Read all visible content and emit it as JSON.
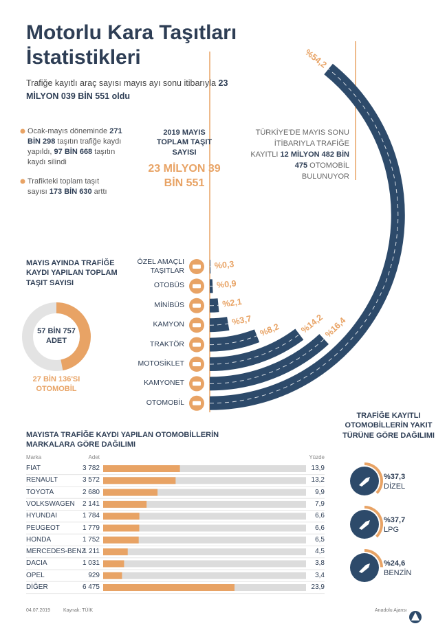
{
  "header": {
    "title": "Motorlu Kara Taşıtları İstatistikleri",
    "subtitle": [
      "Trafiğe kayıtlı araç sayısı mayıs ayı sonu itibarıyla ",
      "23 MİLYON 039 BİN 551 oldu"
    ]
  },
  "notes": [
    [
      "Ocak-mayıs döneminde ",
      "271 BİN 298",
      " taşıtın trafiğe kaydı yapıldı, ",
      "97 BİN 668",
      " taşıtın kaydı silindi"
    ],
    [
      "Trafikteki toplam taşıt sayısı ",
      "173 BİN 630",
      " arttı"
    ]
  ],
  "total_box": {
    "label": "2019 MAYIS TOPLAM TAŞIT SAYISI",
    "value": "23 MİLYON 39 BİN 551"
  },
  "otomobil_box": [
    "TÜRKİYE'DE MAYIS SONU İTİBARIYLA TRAFİĞE KAYITLI ",
    "12 MİLYON 482 BİN 475",
    " OTOMOBİL BULUNUYOR"
  ],
  "chart_data": [
    {
      "type": "radial_bar",
      "categories": [
        "ÖZEL AMAÇLI TAŞITLAR",
        "OTOBÜS",
        "MİNİBÜS",
        "KAMYON",
        "TRAKTÖR",
        "MOTOSİKLET",
        "KAMYONET",
        "OTOMOBİL"
      ],
      "values": [
        0.3,
        0.9,
        2.1,
        3.7,
        8.2,
        14.2,
        16.4,
        54.2
      ],
      "value_labels": [
        "%0,3",
        "%0,9",
        "%2,1",
        "%3,7",
        "%8,2",
        "%14,2",
        "%16,4",
        "%54,2"
      ],
      "color": "#2d4a6a",
      "label_color": "#e8a365"
    },
    {
      "type": "donut",
      "title": "MAYIS AYINDA TRAFİĞE KAYDI YAPILAN TOPLAM TAŞIT SAYISI",
      "total": 57757,
      "total_label": "57 BİN 757 ADET",
      "values": [
        27136
      ],
      "value_labels": [
        "27 BİN 136'SI OTOMOBİL"
      ],
      "color": "#e8a365",
      "track_color": "#e3e3e3"
    },
    {
      "type": "bar",
      "orientation": "horizontal",
      "title": "MAYISTA TRAFİĞE KAYDI YAPILAN OTOMOBİLLERİN MARKALARA GÖRE DAĞILIMI",
      "category_name": "Marka",
      "categories": [
        "FIAT",
        "RENAULT",
        "TOYOTA",
        "VOLKSWAGEN",
        "HYUNDAI",
        "PEUGEOT",
        "HONDA",
        "MERCEDES-BENZ",
        "DACIA",
        "OPEL",
        "DİĞER"
      ],
      "series": [
        {
          "name": "Adet",
          "color": "#e8a365",
          "values": [
            3782,
            3572,
            2680,
            2141,
            1784,
            1779,
            1752,
            1211,
            1031,
            929,
            6475
          ],
          "value_labels": [
            "3 782",
            "3 572",
            "2 680",
            "2 141",
            "1 784",
            "1 779",
            "1 752",
            "1 211",
            "1 031",
            "929",
            "6 475"
          ]
        },
        {
          "name": "Yüzde",
          "values": [
            13.9,
            13.2,
            9.9,
            7.9,
            6.6,
            6.6,
            6.5,
            4.5,
            3.8,
            3.4,
            23.9
          ],
          "value_labels": [
            "13,9",
            "13,2",
            "9,9",
            "7,9",
            "6,6",
            "6,6",
            "6,5",
            "4,5",
            "3,8",
            "3,4",
            "23,9"
          ]
        }
      ],
      "xlim": [
        0,
        10000
      ],
      "track_color": "#dcdcdc"
    },
    {
      "type": "gauge",
      "title": "TRAFİĞE KAYITLI OTOMOBİLLERİN YAKIT TÜRÜNE GÖRE DAĞILIMI",
      "categories": [
        "DİZEL",
        "LPG",
        "BENZİN"
      ],
      "values": [
        37.3,
        37.7,
        24.6
      ],
      "value_labels": [
        "%37,3",
        "%37,7",
        "%24,6"
      ],
      "ylim": [
        0,
        100
      ],
      "color": "#e8a365",
      "disc_color": "#2d4a6a"
    }
  ],
  "footer": {
    "date": "04.07.2019",
    "source": "Kaynak: TÜİK",
    "agency": "Anadolu Ajansı"
  }
}
